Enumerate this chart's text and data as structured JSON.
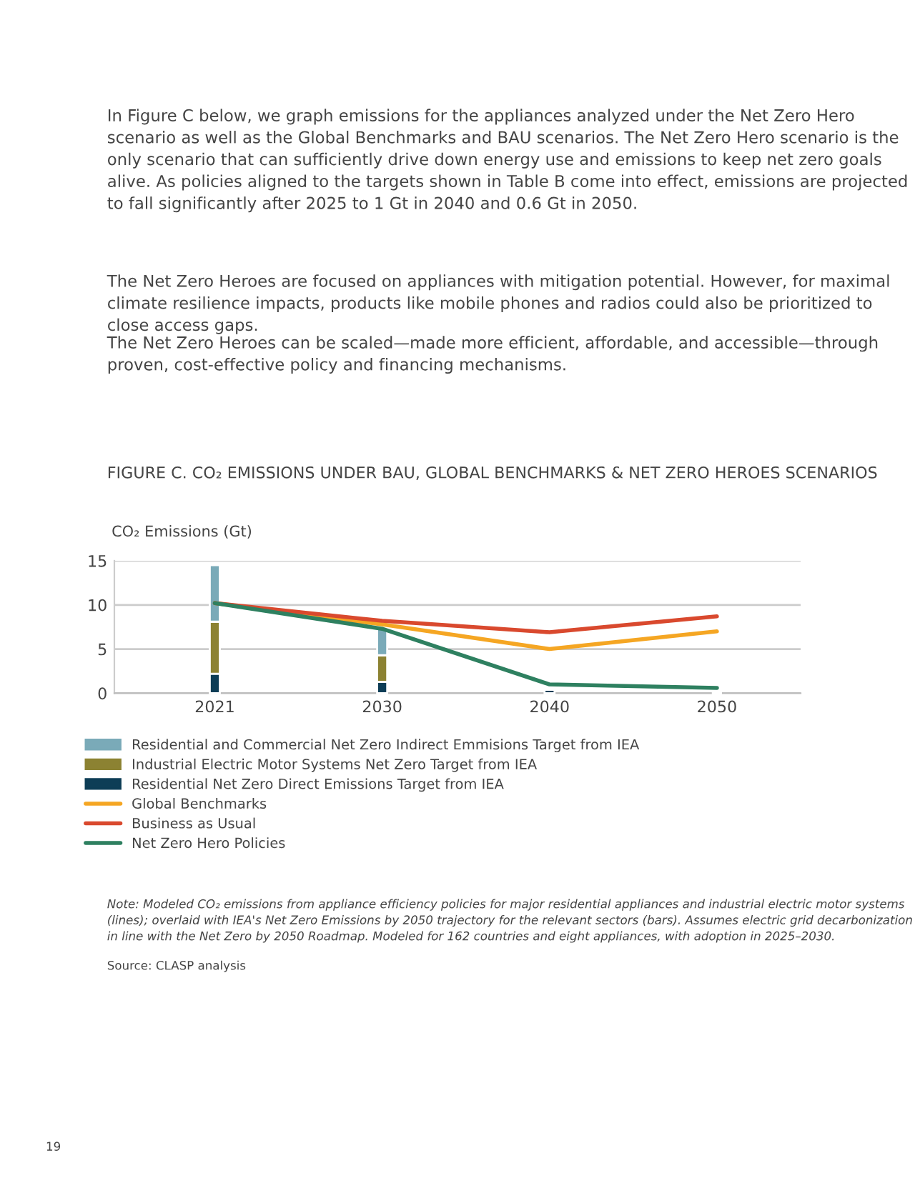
{
  "chart_data": {
    "type": "bar",
    "stacked": true,
    "title": "FIGURE C. CO₂ EMISSIONS UNDER BAU, GLOBAL BENCHMARKS & NET ZERO HEROES SCENARIOS",
    "ylabel": "CO₂ Emissions (Gt)",
    "categories": [
      "2021",
      "2030",
      "2040",
      "2050"
    ],
    "series": [
      {
        "name": "Residential Net Zero Direct Emissions Target from IEA",
        "color": "#0d3d56",
        "values": [
          2.2,
          1.3,
          0.4,
          null
        ]
      },
      {
        "name": "Industrial Electric Motor Systems Net Zero Target from IEA",
        "color": "#8c8232",
        "values": [
          5.9,
          3.0,
          null,
          null
        ]
      },
      {
        "name": "Residential and Commercial Net Zero Indirect Emmisions Target from IEA",
        "color": "#7aaab8",
        "values": [
          6.4,
          3.1,
          null,
          null
        ]
      },
      {
        "name": "Global Benchmarks",
        "type": "line",
        "color": "#f5a623",
        "values": [
          10.2,
          7.8,
          5.0,
          7.0
        ]
      },
      {
        "name": "Business as Usual",
        "type": "line",
        "color": "#d9492e",
        "values": [
          10.2,
          8.2,
          6.9,
          8.7
        ]
      },
      {
        "name": "Net Zero Hero Policies",
        "type": "line",
        "color": "#2e8060",
        "values": [
          10.2,
          7.3,
          1.0,
          0.6
        ]
      }
    ],
    "ylim": [
      0,
      15
    ],
    "yticks": [
      0,
      5,
      10,
      15
    ],
    "grid": "y",
    "legend": "bottom",
    "marker": "none",
    "line_style": "solid",
    "annotations": [
      "In Figure C below, we graph emissions for the appliances analyzed under the Net Zero Hero scenario as well as the Global Benchmarks and BAU scenarios. The Net Zero Hero scenario is the only scenario that can sufficiently drive down energy use and emissions to keep net zero goals alive. As policies aligned to the targets shown in Table B come into effect, emissions are projected to fall significantly after 2025 to 1 Gt in 2040 and 0.6 Gt in 2050.",
      "The Net Zero Heroes are focused on appliances with mitigation potential. However, for maximal climate resilience impacts, products like mobile phones and radios could also be prioritized to close access gaps.",
      "The Net Zero Heroes can be scaled—made more efficient, affordable, and accessible—through proven, cost-effective policy and financing mechanisms.",
      "Note: Modeled CO₂ emissions from appliance efficiency policies for major residential appliances and industrial electric motor systems (lines); overlaid with IEA's Net Zero Emissions by 2050 trajectory for the relevant sectors (bars). Assumes electric grid decarbonization in line with the Net Zero by 2050 Roadmap. Modeled for 162 countries and eight appliances, with adoption in 2025–2030.",
      "Source: CLASP analysis",
      "19"
    ]
  }
}
